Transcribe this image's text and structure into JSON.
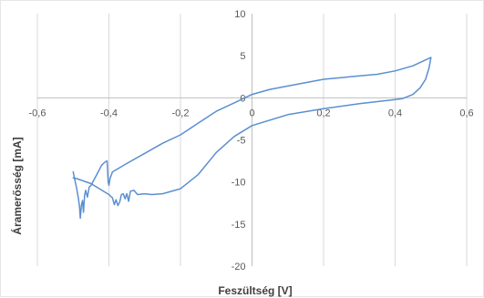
{
  "chart_data": {
    "type": "line",
    "title": "",
    "xlabel": "Feszültség [V]",
    "ylabel": "Áramerősség [mA]",
    "xlim": [
      -0.6,
      0.6
    ],
    "ylim": [
      -20,
      10
    ],
    "x_ticks": [
      "-0,6",
      "-0,4",
      "-0,2",
      "0",
      "0,2",
      "0,4",
      "0,6"
    ],
    "y_ticks": [
      "10",
      "5",
      "0",
      "-5",
      "-10",
      "-15",
      "-20"
    ],
    "grid": "vertical",
    "legend": "none",
    "series": [
      {
        "color": "#5b8fd0",
        "points": [
          [
            -0.5,
            -8.8
          ],
          [
            -0.495,
            -9.8
          ],
          [
            -0.49,
            -10.8
          ],
          [
            -0.485,
            -12.0
          ],
          [
            -0.482,
            -13.0
          ],
          [
            -0.48,
            -14.3
          ],
          [
            -0.477,
            -12.8
          ],
          [
            -0.474,
            -12.2
          ],
          [
            -0.471,
            -13.6
          ],
          [
            -0.468,
            -11.6
          ],
          [
            -0.465,
            -11.0
          ],
          [
            -0.46,
            -11.8
          ],
          [
            -0.455,
            -10.6
          ],
          [
            -0.45,
            -10.4
          ],
          [
            -0.44,
            -9.6
          ],
          [
            -0.43,
            -8.8
          ],
          [
            -0.42,
            -8.0
          ],
          [
            -0.41,
            -7.6
          ],
          [
            -0.405,
            -7.5
          ],
          [
            -0.402,
            -10.0
          ],
          [
            -0.4,
            -10.4
          ],
          [
            -0.397,
            -9.6
          ],
          [
            -0.39,
            -8.8
          ],
          [
            -0.37,
            -8.3
          ],
          [
            -0.35,
            -7.8
          ],
          [
            -0.3,
            -6.6
          ],
          [
            -0.25,
            -5.4
          ],
          [
            -0.2,
            -4.4
          ],
          [
            -0.15,
            -3.0
          ],
          [
            -0.1,
            -1.6
          ],
          [
            -0.05,
            -0.6
          ],
          [
            0.0,
            0.4
          ],
          [
            0.05,
            1.0
          ],
          [
            0.1,
            1.4
          ],
          [
            0.2,
            2.2
          ],
          [
            0.3,
            2.6
          ],
          [
            0.35,
            2.8
          ],
          [
            0.4,
            3.2
          ],
          [
            0.45,
            3.8
          ],
          [
            0.48,
            4.4
          ],
          [
            0.5,
            4.8
          ],
          [
            0.495,
            3.6
          ],
          [
            0.485,
            2.2
          ],
          [
            0.47,
            1.2
          ],
          [
            0.45,
            0.4
          ],
          [
            0.42,
            -0.1
          ],
          [
            0.4,
            -0.2
          ],
          [
            0.3,
            -0.7
          ],
          [
            0.2,
            -1.3
          ],
          [
            0.1,
            -2.0
          ],
          [
            0.0,
            -3.3
          ],
          [
            -0.05,
            -4.6
          ],
          [
            -0.1,
            -6.5
          ],
          [
            -0.15,
            -9.1
          ],
          [
            -0.2,
            -10.8
          ],
          [
            -0.25,
            -11.4
          ],
          [
            -0.28,
            -11.5
          ],
          [
            -0.3,
            -11.4
          ],
          [
            -0.32,
            -11.5
          ],
          [
            -0.33,
            -11.0
          ],
          [
            -0.34,
            -11.1
          ],
          [
            -0.345,
            -12.3
          ],
          [
            -0.35,
            -11.4
          ],
          [
            -0.355,
            -12.0
          ],
          [
            -0.36,
            -11.4
          ],
          [
            -0.365,
            -11.5
          ],
          [
            -0.37,
            -12.4
          ],
          [
            -0.375,
            -12.8
          ],
          [
            -0.38,
            -12.1
          ],
          [
            -0.385,
            -12.7
          ],
          [
            -0.39,
            -11.9
          ],
          [
            -0.4,
            -11.5
          ],
          [
            -0.45,
            -10.2
          ],
          [
            -0.49,
            -9.6
          ],
          [
            -0.5,
            -9.5
          ]
        ]
      }
    ]
  }
}
